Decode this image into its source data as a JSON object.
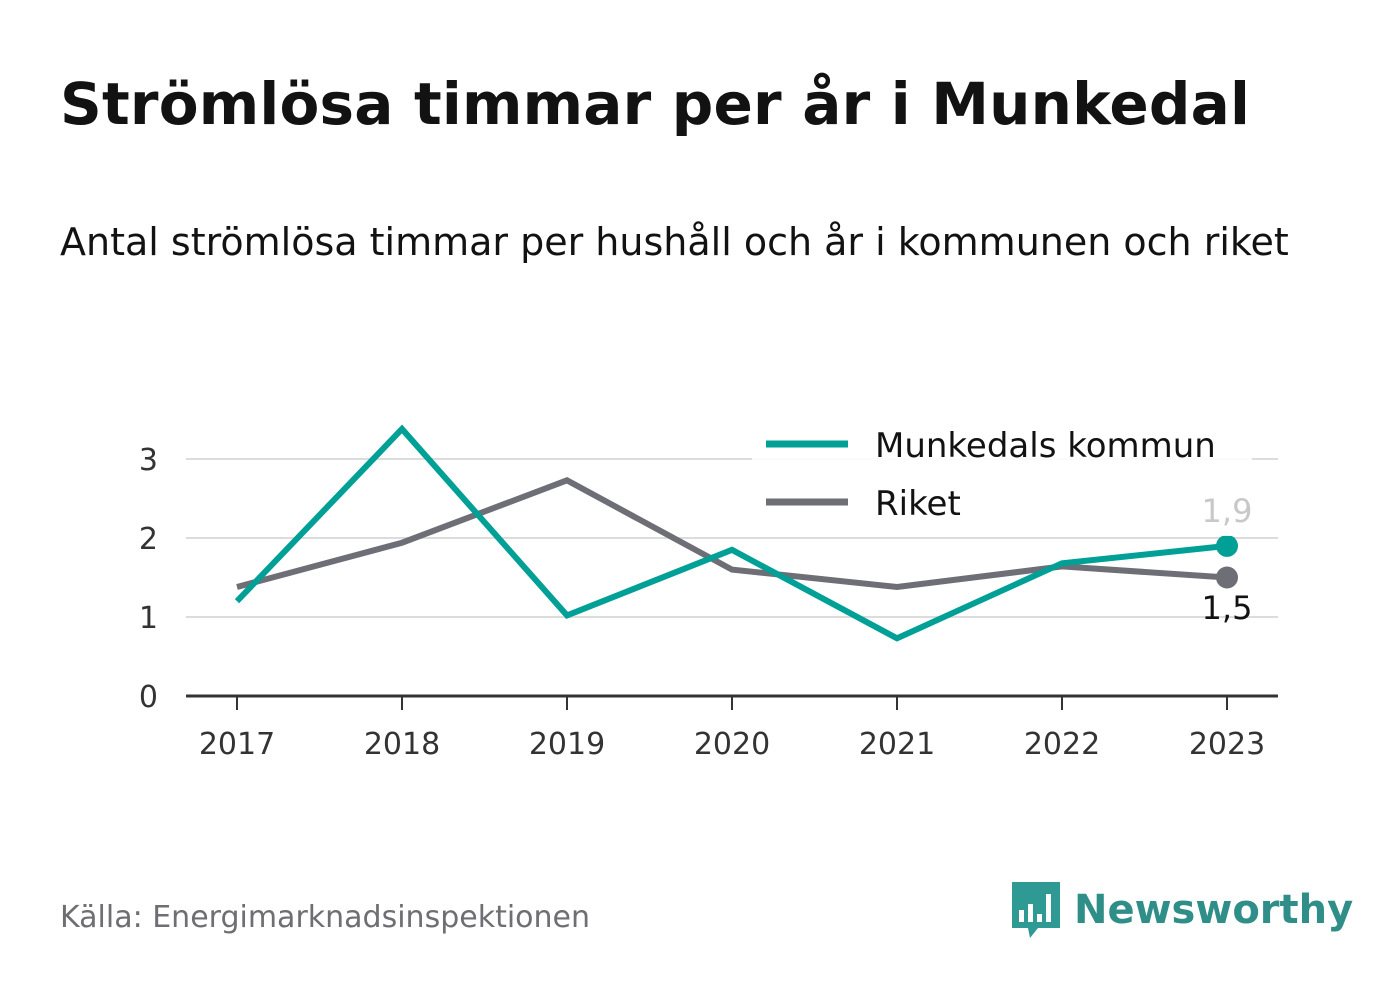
{
  "title": "Strömlösa timmar per år i Munkedal",
  "subtitle": "Antal strömlösa timmar per hushåll och år i kommunen och riket",
  "source": "Källa: Energimarknadsinspektionen",
  "brand": {
    "name": "Newsworthy",
    "icon": "newsworthy-logo-icon",
    "color": "#2f9a93"
  },
  "chart_data": {
    "type": "line",
    "x": [
      "2017",
      "2018",
      "2019",
      "2020",
      "2021",
      "2022",
      "2023"
    ],
    "ylim": [
      0,
      3.5
    ],
    "yticks": [
      "0",
      "1",
      "2",
      "3"
    ],
    "grid": true,
    "legend_position": "top-right",
    "series": [
      {
        "name": "Munkedals kommun",
        "color": "#00a096",
        "values": [
          1.2,
          3.38,
          1.02,
          1.85,
          0.73,
          1.68,
          1.9
        ],
        "end_label": "1,9"
      },
      {
        "name": "Riket",
        "color": "#6e6e76",
        "values": [
          1.38,
          1.94,
          2.73,
          1.6,
          1.38,
          1.64,
          1.5
        ],
        "end_label": "1,5"
      }
    ]
  }
}
